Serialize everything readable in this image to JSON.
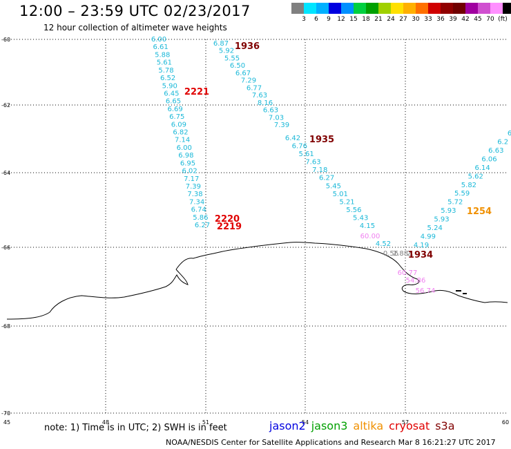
{
  "title": "12:00 – 23:59 UTC 02/23/2017",
  "subtitle": "12 hour collection of altimeter wave heights",
  "scale": {
    "colors": [
      "#808080",
      "#00e5ff",
      "#00b0ff",
      "#0000e0",
      "#0090ff",
      "#00d040",
      "#00a000",
      "#a0d000",
      "#ffe000",
      "#ffb000",
      "#ff7000",
      "#d00000",
      "#900000",
      "#700000",
      "#a000a0",
      "#d050d0",
      "#ff90ff",
      "#000000"
    ],
    "labels": [
      "3",
      "6",
      "9",
      "12",
      "15",
      "18",
      "21",
      "24",
      "27",
      "30",
      "33",
      "36",
      "39",
      "42",
      "45",
      "70",
      "(ft)"
    ]
  },
  "axes": {
    "lat_labels": [
      "-60",
      "-62",
      "-64",
      "-66",
      "-68",
      "-70"
    ],
    "lon_labels": [
      "45",
      "48",
      "51",
      "54",
      "57",
      "60"
    ]
  },
  "tracks": [
    {
      "name": "pass-2221",
      "color": "#1ab8d8",
      "values": [
        "6.00",
        "6.61",
        "5.88",
        "5.61",
        "5.78",
        "6.52",
        "5.90",
        "6.45",
        "6.65",
        "6.69",
        "6.75",
        "6.09",
        "6.82",
        "7.14",
        "6.00",
        "6.98",
        "6.95",
        "6.02",
        "7.17",
        "7.39",
        "7.38",
        "7.34",
        "6.74",
        "5.86",
        "6.27"
      ]
    },
    {
      "name": "pass-1936",
      "color": "#1ab8d8",
      "values": [
        "6.87",
        "5.92",
        "5.55",
        "6.50",
        "6.67",
        "7.29",
        "6.77",
        "7.63",
        "8.16",
        "6.63",
        "7.03",
        "7.39"
      ]
    },
    {
      "name": "pass-1935",
      "color": "#1ab8d8",
      "values": [
        "6.42",
        "6.76",
        "5.61",
        "7.63",
        "7.18",
        "6.27",
        "5.45",
        "5.01",
        "5.21",
        "5.56",
        "5.43",
        "4.15"
      ]
    },
    {
      "name": "pass-1934",
      "color": "#1ab8d8",
      "values": [
        "4.19",
        "4.99",
        "5.24",
        "5.93",
        "5.93",
        "5.72",
        "5.59",
        "5.82",
        "5.62",
        "6.14",
        "6.06",
        "6.63",
        "6.2",
        "6"
      ]
    }
  ],
  "special_values": [
    {
      "text": "60.00",
      "color": "#f080f0"
    },
    {
      "text": "4.52",
      "color": "#1ab8d8"
    },
    {
      "text": "0.56",
      "color": "#808080"
    },
    {
      "text": "2.88",
      "color": "#808080"
    },
    {
      "text": "2.",
      "color": "#808080"
    },
    {
      "text": "60.77",
      "color": "#f080f0"
    },
    {
      "text": "54.86",
      "color": "#f080f0"
    },
    {
      "text": "56.74",
      "color": "#f080f0"
    }
  ],
  "times": [
    {
      "text": "1936",
      "color": "#800000"
    },
    {
      "text": "2221",
      "color": "#e00000"
    },
    {
      "text": "1935",
      "color": "#800000"
    },
    {
      "text": "2220",
      "color": "#e00000"
    },
    {
      "text": "2219",
      "color": "#e00000"
    },
    {
      "text": "1934",
      "color": "#800000"
    },
    {
      "text": "1254",
      "color": "#f09000"
    }
  ],
  "note": "note: 1) Time is in UTC; 2) SWH is in feet",
  "legend": [
    {
      "name": "jason2",
      "color": "#0000e0"
    },
    {
      "name": "jason3",
      "color": "#00a000"
    },
    {
      "name": "altika",
      "color": "#f09000"
    },
    {
      "name": "cryosat",
      "color": "#e00000"
    },
    {
      "name": "s3a",
      "color": "#800000"
    }
  ],
  "credit": "NOAA/NESDIS Center for Satellite Applications and Research   Mar  8 16:21:27 UTC 2017"
}
